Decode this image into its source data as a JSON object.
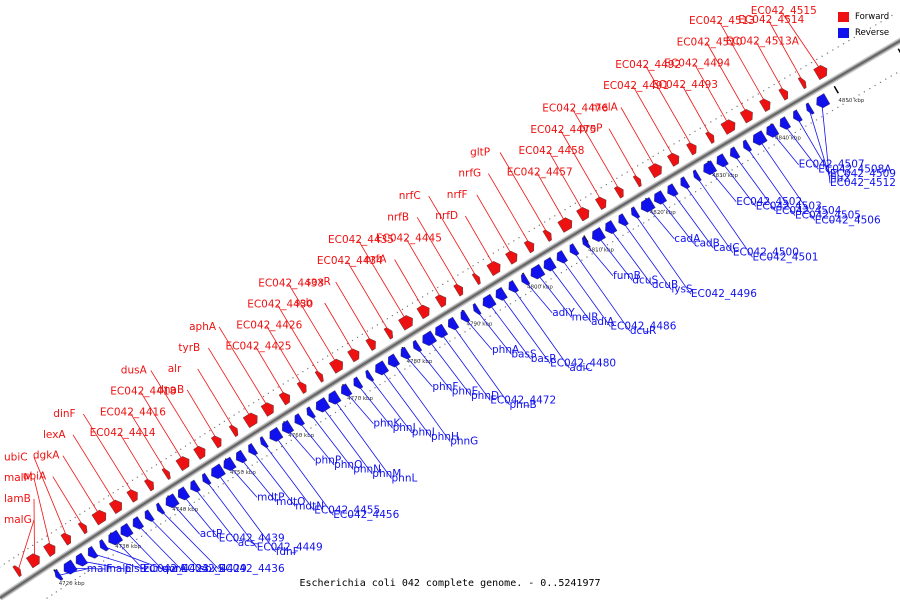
{
  "caption": "Escherichia coli 042 complete genome. - 0..5241977",
  "colors": {
    "forward": "#ee1111",
    "reverse": "#1111ee",
    "backbone": "#888888"
  },
  "legend": [
    {
      "label": "Forward",
      "color": "#ee1111"
    },
    {
      "label": "Reverse",
      "color": "#1111ee"
    }
  ],
  "ticks": [
    "4720 kbp",
    "4730 kbp",
    "4740 kbp",
    "4750 kbp",
    "4760 kbp",
    "4770 kbp",
    "4780 kbp",
    "4790 kbp",
    "4800 kbp",
    "4810 kbp",
    "4820 kbp",
    "4830 kbp",
    "4840 kbp",
    "4850 kbp",
    "4860 kbp"
  ],
  "forward_genes": [
    "malG",
    "lamB",
    "malM",
    "ubiC",
    "ubiA",
    "dgkA",
    "lexA",
    "dinF",
    "EC042_4414",
    "EC042_4416",
    "EC042_4418",
    "dusA",
    "dnaB",
    "alr",
    "tyrB",
    "aphA",
    "EC042_4425",
    "EC042_4426",
    "EC042_4430",
    "EC042_4433",
    "ssb",
    "soxR",
    "EC042_4434",
    "EC042_4435",
    "nrfA",
    "EC042_4445",
    "nrfB",
    "nrfC",
    "nrfD",
    "nrfF",
    "nrfG",
    "gltP",
    "EC042_4457",
    "EC042_4458",
    "EC042_4475",
    "EC042_4476",
    "proP",
    "melA",
    "EC042_4491",
    "EC042_4492",
    "EC042_4493",
    "EC042_4494",
    "EC042_4510",
    "EC042_4513",
    "EC042_4513A",
    "EC042_4514",
    "EC042_4515"
  ],
  "reverse_genes": [
    "malF",
    "malE",
    "plsB",
    "zur",
    "qor",
    "EC042_4423",
    "uvrA",
    "EC042_4429",
    "soxS",
    "EC042_4436",
    "actP",
    "EC042_4439",
    "acs",
    "EC042_4449",
    "fdhF",
    "mdtP",
    "mdtO",
    "mdtN",
    "EC042_4455",
    "EC042_4456",
    "phnP",
    "phnO",
    "phnN",
    "phnM",
    "phnL",
    "phnK",
    "phnJ",
    "phnI",
    "phnH",
    "phnG",
    "phnF",
    "phnE",
    "phnD",
    "EC042_4472",
    "phnB",
    "phnA",
    "basS",
    "basR",
    "EC042_4480",
    "adiC",
    "adiY",
    "melR",
    "adiA",
    "EC042_4486",
    "dcuR",
    "fumB",
    "dcuS",
    "dcuB",
    "lysS",
    "EC042_4496",
    "cadA",
    "cadB",
    "cadC",
    "EC042_4500",
    "EC042_4501",
    "EC042_4502",
    "EC042_4503",
    "EC042_4504",
    "EC042_4505",
    "EC042_4506",
    "EC042_4507",
    "EC042_4508A",
    "EC042_4509",
    "flu2",
    "EC042_4512"
  ]
}
